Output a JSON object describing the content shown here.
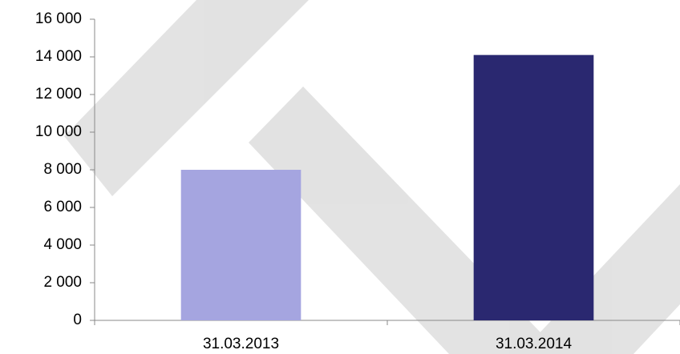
{
  "chart_data": {
    "type": "bar",
    "categories": [
      "31.03.2013",
      "31.03.2014"
    ],
    "values": [
      8000,
      14100
    ],
    "colors": [
      "#a5a5e0",
      "#2a2870"
    ],
    "ylim": [
      0,
      16000
    ],
    "yticks": [
      0,
      {
        "value": 2000,
        "label": "2 000"
      },
      {
        "value": 4000,
        "label": "4 000"
      },
      {
        "value": 6000,
        "label": "6 000"
      },
      {
        "value": 8000,
        "label": "8 000"
      },
      {
        "value": 10000,
        "label": "10 000"
      },
      {
        "value": 12000,
        "label": "12 000"
      },
      {
        "value": 14000,
        "label": "14 000"
      },
      {
        "value": 16000,
        "label": "16 000"
      }
    ],
    "grid": false
  }
}
